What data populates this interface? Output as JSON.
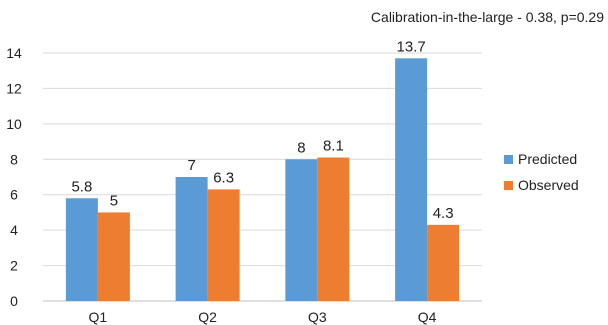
{
  "chart_data": {
    "type": "bar",
    "annotation": "Calibration-in-the-large - 0.38, p=0.29",
    "categories": [
      "Q1",
      "Q2",
      "Q3",
      "Q4"
    ],
    "series": [
      {
        "name": "Predicted",
        "values": [
          5.8,
          7,
          8,
          13.7
        ],
        "labels": [
          "5.8",
          "7",
          "8",
          "13.7"
        ],
        "color": "#5b9bd5"
      },
      {
        "name": "Observed",
        "values": [
          5,
          6.3,
          8.1,
          4.3
        ],
        "labels": [
          "5",
          "6.3",
          "8.1",
          "4.3"
        ],
        "color": "#ed7d31"
      }
    ],
    "ylim": [
      0,
      14
    ],
    "yticks": [
      0,
      2,
      4,
      6,
      8,
      10,
      12,
      14
    ],
    "ytick_labels": [
      "0",
      "2",
      "4",
      "6",
      "8",
      "10",
      "12",
      "14"
    ],
    "grid": true,
    "gridline_color": "#d9d9d9",
    "legend_position": "right"
  }
}
